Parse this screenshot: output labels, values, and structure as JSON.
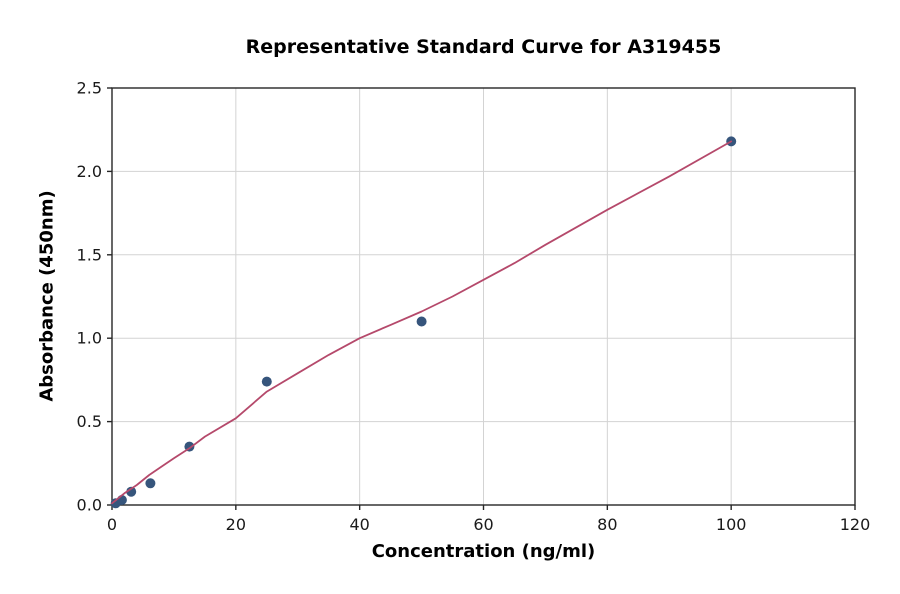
{
  "chart_data": {
    "type": "scatter",
    "title": "Representative Standard Curve for A319455",
    "xlabel": "Concentration (ng/ml)",
    "ylabel": "Absorbance (450nm)",
    "xlim": [
      0,
      120
    ],
    "ylim": [
      0,
      2.5
    ],
    "grid": true,
    "legend": "none",
    "xticks": {
      "values": [
        0,
        20,
        40,
        60,
        80,
        100,
        120
      ],
      "labels": [
        "0",
        "20",
        "40",
        "60",
        "80",
        "100",
        "120"
      ]
    },
    "yticks": {
      "values": [
        0,
        0.5,
        1.0,
        1.5,
        2.0,
        2.5
      ],
      "labels": [
        "0.0",
        "0.5",
        "1.0",
        "1.5",
        "2.0",
        "2.5"
      ]
    },
    "colors": {
      "points": "#36557c",
      "curve": "#b5496b",
      "grid": "#d3d3d3",
      "axis": "#262626",
      "tick_text": "#1a1a1a",
      "background": "#ffffff"
    },
    "series": [
      {
        "name": "standard-points",
        "type": "scatter",
        "color": "#36557c",
        "marker_radius": 5,
        "points": [
          [
            0.6,
            0.01
          ],
          [
            1.6,
            0.03
          ],
          [
            3.1,
            0.08
          ],
          [
            6.2,
            0.13
          ],
          [
            12.5,
            0.35
          ],
          [
            25,
            0.74
          ],
          [
            50,
            1.1
          ],
          [
            100,
            2.18
          ]
        ]
      },
      {
        "name": "fit-curve",
        "type": "line",
        "color": "#b5496b",
        "stroke_width": 1.8,
        "points": [
          [
            0,
            0.01
          ],
          [
            2,
            0.07
          ],
          [
            4,
            0.12
          ],
          [
            6,
            0.18
          ],
          [
            8,
            0.23
          ],
          [
            10,
            0.28
          ],
          [
            12.5,
            0.34
          ],
          [
            15,
            0.41
          ],
          [
            20,
            0.52
          ],
          [
            25,
            0.68
          ],
          [
            30,
            0.79
          ],
          [
            35,
            0.9
          ],
          [
            40,
            1.0
          ],
          [
            45,
            1.08
          ],
          [
            50,
            1.16
          ],
          [
            55,
            1.25
          ],
          [
            60,
            1.35
          ],
          [
            65,
            1.45
          ],
          [
            70,
            1.56
          ],
          [
            80,
            1.77
          ],
          [
            90,
            1.97
          ],
          [
            100,
            2.18
          ]
        ]
      }
    ]
  }
}
